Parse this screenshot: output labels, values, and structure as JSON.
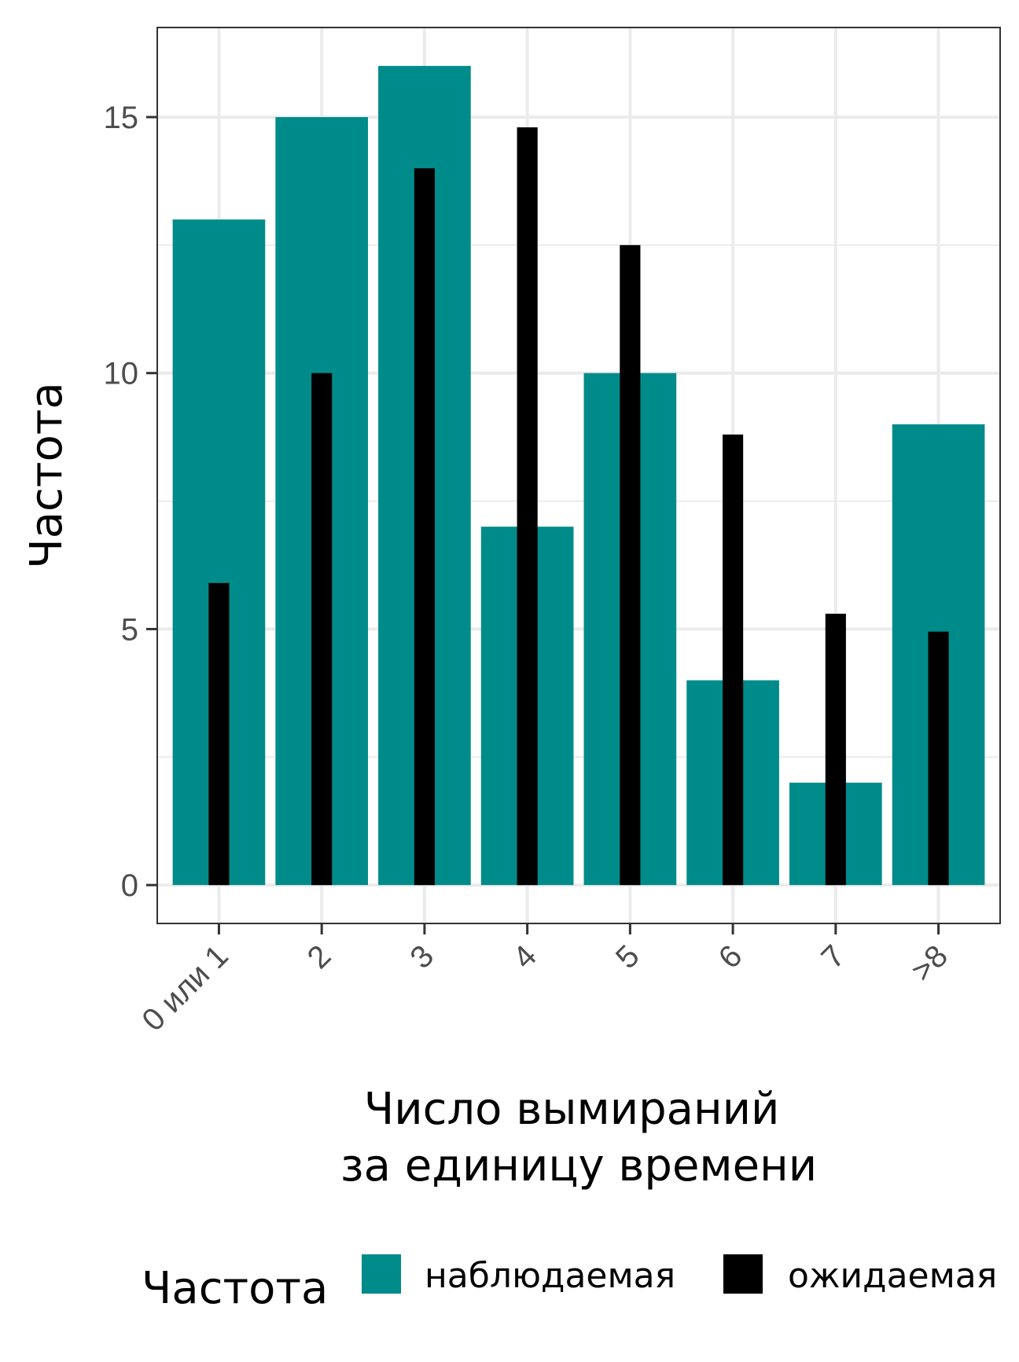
{
  "chart_data": {
    "type": "bar",
    "categories": [
      "0 или 1",
      "2",
      "3",
      "4",
      "5",
      "6",
      "7",
      ">8"
    ],
    "series": [
      {
        "name": "наблюдаемая",
        "values": [
          13,
          15,
          16,
          7,
          10,
          4,
          2,
          9
        ],
        "color": "#008B8B"
      },
      {
        "name": "ожидаемая",
        "values": [
          5.9,
          10.0,
          14.0,
          14.8,
          12.5,
          8.8,
          5.3,
          4.95
        ],
        "color": "#000000"
      }
    ],
    "title": "",
    "xlabel_lines": [
      "Число вымираний",
      "за единицу времени"
    ],
    "ylabel": "Частота",
    "ylim": [
      -0.75,
      16.75
    ],
    "yticks": [
      0,
      5,
      10,
      15
    ],
    "grid": true,
    "legend": {
      "title": "Частота",
      "position": "bottom"
    }
  }
}
